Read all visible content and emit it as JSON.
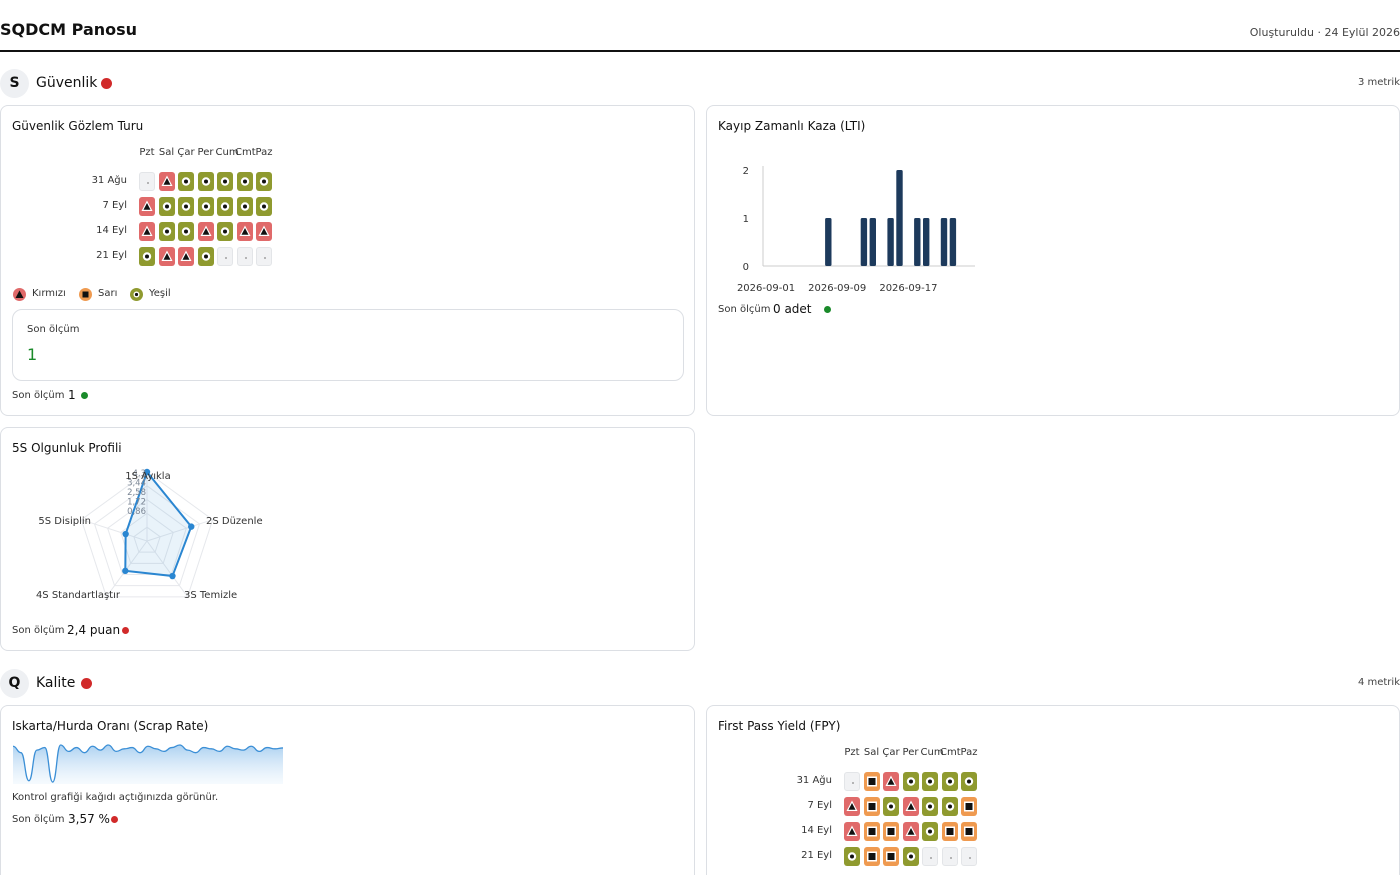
{
  "header": {
    "title": "SQDCM Panosu",
    "created": "Oluşturuldu · 24 Eylül 2026"
  },
  "colors": {
    "red": "#d12a2a",
    "green": "#1a8a2a",
    "bar": "#1d3a5c",
    "radar": "#2a86d1"
  },
  "calendar_days": [
    "Pzt",
    "Sal",
    "Çar",
    "Per",
    "Cum",
    "Cmt",
    "Paz"
  ],
  "sections": {
    "safety": {
      "letter": "S",
      "name": "Güvenlik",
      "count": "3 metrik",
      "status": "red"
    },
    "quality": {
      "letter": "Q",
      "name": "Kalite",
      "count": "4 metrik",
      "status": "red"
    }
  },
  "legend": {
    "red": "Kırmızı",
    "yellow": "Sarı",
    "green": "Yeşil"
  },
  "cards": {
    "safety_walk": {
      "title": "Güvenlik Gözlem Turu",
      "weeks": [
        {
          "label": "31 Ağu",
          "cells": [
            "empty",
            "red",
            "green",
            "green",
            "green",
            "green",
            "green"
          ]
        },
        {
          "label": "7 Eyl",
          "cells": [
            "red",
            "green",
            "green",
            "green",
            "green",
            "green",
            "green"
          ]
        },
        {
          "label": "14 Eyl",
          "cells": [
            "red",
            "green",
            "green",
            "red",
            "green",
            "red",
            "red"
          ]
        },
        {
          "label": "21 Eyl",
          "cells": [
            "green",
            "red",
            "red",
            "green",
            "empty",
            "empty",
            "empty"
          ]
        }
      ],
      "box_label": "Son ölçüm",
      "box_value": "1",
      "last_label": "Son ölçüm",
      "last_value": "1",
      "last_status": "green"
    },
    "lti": {
      "title": "Kayıp Zamanlı Kaza (LTI)",
      "last_label": "Son ölçüm",
      "last_value": "0 adet",
      "last_status": "green"
    },
    "five_s": {
      "title": "5S Olgunluk Profili",
      "last_label": "Son ölçüm",
      "last_value": "2,4 puan",
      "last_status": "red"
    },
    "scrap": {
      "title": "Iskarta/Hurda Oranı (Scrap Rate)",
      "note": "Kontrol grafiği kağıdı açtığınızda görünür.",
      "last_label": "Son ölçüm",
      "last_value": "3,57 %",
      "last_status": "red"
    },
    "fpy": {
      "title": "First Pass Yield (FPY)",
      "weeks": [
        {
          "label": "31 Ağu",
          "cells": [
            "empty",
            "orange",
            "red",
            "green",
            "green",
            "green",
            "green"
          ]
        },
        {
          "label": "7 Eyl",
          "cells": [
            "red",
            "orange",
            "green",
            "red",
            "green",
            "green",
            "orange"
          ]
        },
        {
          "label": "14 Eyl",
          "cells": [
            "red",
            "orange",
            "orange",
            "red",
            "green",
            "orange",
            "orange"
          ]
        },
        {
          "label": "21 Eyl",
          "cells": [
            "green",
            "orange",
            "orange",
            "green",
            "empty",
            "empty",
            "empty"
          ]
        }
      ]
    }
  },
  "chart_data": [
    {
      "type": "bar",
      "name": "lti",
      "x_tick_labels": [
        "2026-09-01",
        "2026-09-09",
        "2026-09-17"
      ],
      "x": [
        "2026-09-01",
        "2026-09-02",
        "2026-09-03",
        "2026-09-04",
        "2026-09-05",
        "2026-09-06",
        "2026-09-07",
        "2026-09-08",
        "2026-09-09",
        "2026-09-10",
        "2026-09-11",
        "2026-09-12",
        "2026-09-13",
        "2026-09-14",
        "2026-09-15",
        "2026-09-16",
        "2026-09-17",
        "2026-09-18",
        "2026-09-19",
        "2026-09-20",
        "2026-09-21",
        "2026-09-22",
        "2026-09-23",
        "2026-09-24"
      ],
      "values": [
        0,
        0,
        0,
        0,
        0,
        0,
        0,
        1,
        0,
        0,
        0,
        1,
        1,
        0,
        1,
        2,
        0,
        1,
        1,
        0,
        1,
        1,
        0,
        0
      ],
      "y_ticks": [
        0,
        1,
        2
      ],
      "ylim": [
        0,
        2
      ],
      "grid": false
    },
    {
      "type": "radar",
      "name": "five_s",
      "axes": [
        "1S Ayıkla",
        "2S Düzenle",
        "3S Temizle",
        "4S Standartlaştır",
        "5S Disiplin"
      ],
      "values": [
        4.3,
        2.9,
        2.7,
        2.3,
        1.4
      ],
      "max": 4.3,
      "ring_labels": [
        "4,3",
        "3,44",
        "2,58",
        "1,72",
        "0,86"
      ]
    },
    {
      "type": "area",
      "name": "scrap",
      "values": [
        3.7,
        3.2,
        1.0,
        3.4,
        3.6,
        0.9,
        3.8,
        3.3,
        3.6,
        3.2,
        3.7,
        3.4,
        3.8,
        3.3,
        3.5,
        3.6,
        3.2,
        3.7,
        3.5,
        3.3,
        3.6,
        3.8,
        3.4,
        3.2,
        3.6,
        3.5,
        3.3,
        3.7,
        3.5,
        3.4,
        3.7,
        3.3,
        3.6,
        3.5,
        3.57
      ],
      "grid": false
    }
  ]
}
